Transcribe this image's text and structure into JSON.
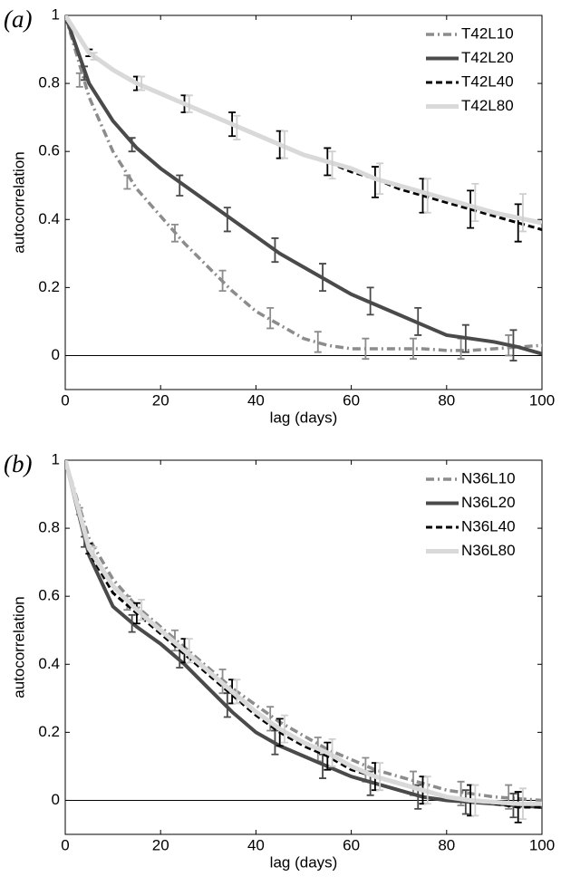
{
  "chart_data": [
    {
      "type": "line",
      "panel_label": "(a)",
      "xlabel": "lag (days)",
      "ylabel": "autocorrelation",
      "xlim": [
        0,
        100
      ],
      "ylim": [
        -0.1,
        1
      ],
      "xticks": [
        0,
        20,
        40,
        60,
        80,
        100
      ],
      "yticks": [
        0,
        0.2,
        0.4,
        0.6,
        0.8,
        1
      ],
      "hline": 0,
      "grid": false,
      "legend": "upper right",
      "x": [
        0,
        5,
        10,
        15,
        20,
        25,
        30,
        35,
        40,
        45,
        50,
        55,
        60,
        65,
        70,
        75,
        80,
        85,
        90,
        95,
        100
      ],
      "series": [
        {
          "name": "T42L10",
          "color": "#8c8c8c",
          "linestyle": "dashdot",
          "values": [
            1,
            0.76,
            0.6,
            0.49,
            0.41,
            0.33,
            0.26,
            0.19,
            0.13,
            0.09,
            0.05,
            0.03,
            0.02,
            0.02,
            0.02,
            0.02,
            0.015,
            0.015,
            0.02,
            0.025,
            0.03
          ],
          "error_x": [
            3,
            13,
            23,
            33,
            43,
            53,
            63,
            73,
            83,
            93
          ],
          "error_values": [
            0.81,
            0.51,
            0.36,
            0.22,
            0.11,
            0.04,
            0.02,
            0.02,
            0.02,
            0.03
          ],
          "errors": [
            0.02,
            0.02,
            0.025,
            0.03,
            0.03,
            0.03,
            0.03,
            0.03,
            0.03,
            0.03
          ]
        },
        {
          "name": "T42L20",
          "color": "#4a4a4a",
          "linestyle": "solid",
          "values": [
            1,
            0.8,
            0.69,
            0.61,
            0.55,
            0.5,
            0.45,
            0.4,
            0.35,
            0.3,
            0.26,
            0.22,
            0.18,
            0.15,
            0.12,
            0.09,
            0.06,
            0.05,
            0.04,
            0.025,
            0.005
          ],
          "error_x": [
            4,
            14,
            24,
            34,
            44,
            54,
            64,
            74,
            84,
            94
          ],
          "error_values": [
            0.83,
            0.62,
            0.5,
            0.4,
            0.31,
            0.23,
            0.16,
            0.1,
            0.05,
            0.03
          ],
          "errors": [
            0.02,
            0.02,
            0.03,
            0.035,
            0.035,
            0.04,
            0.04,
            0.04,
            0.04,
            0.045
          ]
        },
        {
          "name": "T42L40",
          "color": "#000000",
          "linestyle": "dashed",
          "values": [
            1,
            0.89,
            0.84,
            0.8,
            0.77,
            0.74,
            0.71,
            0.68,
            0.65,
            0.62,
            0.59,
            0.57,
            0.54,
            0.52,
            0.49,
            0.47,
            0.45,
            0.43,
            0.41,
            0.39,
            0.37
          ],
          "error_x": [
            5,
            15,
            25,
            35,
            45,
            55,
            65,
            75,
            85,
            95
          ],
          "error_values": [
            0.89,
            0.8,
            0.74,
            0.68,
            0.62,
            0.57,
            0.51,
            0.47,
            0.43,
            0.39
          ],
          "errors": [
            0.01,
            0.02,
            0.025,
            0.035,
            0.04,
            0.04,
            0.045,
            0.05,
            0.055,
            0.055
          ]
        },
        {
          "name": "T42L80",
          "color": "#d9d9d9",
          "linestyle": "solid",
          "values": [
            1,
            0.89,
            0.84,
            0.8,
            0.77,
            0.74,
            0.71,
            0.68,
            0.65,
            0.62,
            0.59,
            0.57,
            0.55,
            0.52,
            0.5,
            0.48,
            0.46,
            0.44,
            0.42,
            0.405,
            0.39
          ],
          "error_x": [
            6,
            16,
            26,
            36,
            46,
            56,
            66,
            76,
            86,
            96
          ],
          "error_values": [
            0.88,
            0.8,
            0.74,
            0.67,
            0.62,
            0.56,
            0.52,
            0.47,
            0.45,
            0.42
          ],
          "errors": [
            0.01,
            0.02,
            0.025,
            0.035,
            0.04,
            0.04,
            0.045,
            0.05,
            0.055,
            0.055
          ]
        }
      ]
    },
    {
      "type": "line",
      "panel_label": "(b)",
      "xlabel": "lag (days)",
      "ylabel": "autocorrelation",
      "xlim": [
        0,
        100
      ],
      "ylim": [
        -0.1,
        1
      ],
      "xticks": [
        0,
        20,
        40,
        60,
        80,
        100
      ],
      "yticks": [
        0,
        0.2,
        0.4,
        0.6,
        0.8,
        1
      ],
      "hline": 0,
      "grid": false,
      "legend": "upper right",
      "x": [
        0,
        5,
        10,
        15,
        20,
        25,
        30,
        35,
        40,
        45,
        50,
        55,
        60,
        65,
        70,
        75,
        80,
        85,
        90,
        95,
        100
      ],
      "series": [
        {
          "name": "N36L10",
          "color": "#8c8c8c",
          "linestyle": "dashdot",
          "values": [
            1,
            0.77,
            0.65,
            0.57,
            0.51,
            0.45,
            0.39,
            0.33,
            0.28,
            0.23,
            0.19,
            0.15,
            0.12,
            0.09,
            0.07,
            0.05,
            0.03,
            0.02,
            0.01,
            0.005,
            0
          ],
          "error_x": [
            3,
            13,
            23,
            33,
            43,
            53,
            63,
            73,
            83,
            93
          ],
          "error_values": [
            0.85,
            0.58,
            0.47,
            0.35,
            0.24,
            0.15,
            0.09,
            0.05,
            0.02,
            0.01
          ],
          "errors": [
            0.01,
            0.02,
            0.03,
            0.035,
            0.035,
            0.035,
            0.035,
            0.035,
            0.035,
            0.035
          ]
        },
        {
          "name": "N36L20",
          "color": "#4a4a4a",
          "linestyle": "solid",
          "values": [
            1,
            0.72,
            0.57,
            0.51,
            0.46,
            0.4,
            0.33,
            0.26,
            0.2,
            0.16,
            0.13,
            0.1,
            0.07,
            0.05,
            0.03,
            0.01,
            0,
            -0.005,
            -0.01,
            -0.015,
            -0.02
          ],
          "error_x": [
            4,
            14,
            24,
            34,
            44,
            54,
            64,
            74,
            84,
            94
          ],
          "error_values": [
            0.76,
            0.52,
            0.42,
            0.28,
            0.17,
            0.1,
            0.05,
            0.01,
            -0.005,
            -0.015
          ],
          "errors": [
            0.015,
            0.025,
            0.03,
            0.035,
            0.035,
            0.035,
            0.035,
            0.035,
            0.035,
            0.035
          ]
        },
        {
          "name": "N36L40",
          "color": "#000000",
          "linestyle": "dashed",
          "values": [
            1,
            0.73,
            0.61,
            0.55,
            0.49,
            0.43,
            0.37,
            0.31,
            0.25,
            0.2,
            0.16,
            0.13,
            0.09,
            0.07,
            0.05,
            0.03,
            0.01,
            0,
            -0.01,
            -0.02,
            -0.02
          ],
          "error_x": [
            5,
            15,
            25,
            35,
            45,
            55,
            65,
            75,
            85,
            95
          ],
          "error_values": [
            0.74,
            0.55,
            0.44,
            0.32,
            0.2,
            0.13,
            0.07,
            0.03,
            0,
            -0.02
          ],
          "errors": [
            0.015,
            0.03,
            0.035,
            0.035,
            0.04,
            0.04,
            0.04,
            0.04,
            0.045,
            0.045
          ]
        },
        {
          "name": "N36L80",
          "color": "#d9d9d9",
          "linestyle": "solid",
          "values": [
            1,
            0.74,
            0.63,
            0.56,
            0.5,
            0.44,
            0.38,
            0.32,
            0.26,
            0.21,
            0.17,
            0.14,
            0.1,
            0.07,
            0.05,
            0.03,
            0.01,
            0,
            -0.005,
            -0.01,
            -0.01
          ],
          "error_x": [
            6,
            16,
            26,
            36,
            46,
            56,
            66,
            76,
            86,
            96
          ],
          "error_values": [
            0.73,
            0.56,
            0.44,
            0.32,
            0.21,
            0.14,
            0.07,
            0.03,
            0,
            -0.01
          ],
          "errors": [
            0.015,
            0.03,
            0.035,
            0.035,
            0.04,
            0.04,
            0.04,
            0.04,
            0.045,
            0.045
          ]
        }
      ]
    }
  ]
}
